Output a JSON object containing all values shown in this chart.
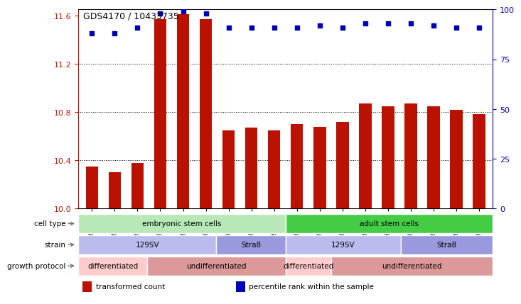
{
  "title": "GDS4170 / 10433735",
  "samples": [
    "GSM560810",
    "GSM560811",
    "GSM560812",
    "GSM560816",
    "GSM560817",
    "GSM560818",
    "GSM560813",
    "GSM560814",
    "GSM560815",
    "GSM560819",
    "GSM560820",
    "GSM560821",
    "GSM560822",
    "GSM560823",
    "GSM560824",
    "GSM560825",
    "GSM560826",
    "GSM560827"
  ],
  "bar_values": [
    10.35,
    10.3,
    10.38,
    11.57,
    11.61,
    11.57,
    10.65,
    10.67,
    10.65,
    10.7,
    10.68,
    10.72,
    10.87,
    10.85,
    10.87,
    10.85,
    10.82,
    10.78
  ],
  "percentile_values": [
    88,
    88,
    91,
    98,
    99,
    98,
    91,
    91,
    91,
    91,
    92,
    91,
    93,
    93,
    93,
    92,
    91,
    91
  ],
  "bar_color": "#bb1100",
  "percentile_color": "#0000bb",
  "ylim_left": [
    10.0,
    11.65
  ],
  "ylim_right": [
    0,
    100
  ],
  "yticks_left": [
    10.0,
    10.4,
    10.8,
    11.2,
    11.6
  ],
  "yticks_right": [
    0,
    25,
    50,
    75,
    100
  ],
  "cell_type_regions": [
    {
      "label": "embryonic stem cells",
      "start": 0,
      "end": 8,
      "color": "#b8e8b8"
    },
    {
      "label": "adult stem cells",
      "start": 9,
      "end": 17,
      "color": "#44cc44"
    }
  ],
  "strain_regions": [
    {
      "label": "129SV",
      "start": 0,
      "end": 5,
      "color": "#bbbbee"
    },
    {
      "label": "Stra8",
      "start": 6,
      "end": 8,
      "color": "#9999dd"
    },
    {
      "label": "129SV",
      "start": 9,
      "end": 13,
      "color": "#bbbbee"
    },
    {
      "label": "Stra8",
      "start": 14,
      "end": 17,
      "color": "#9999dd"
    }
  ],
  "protocol_regions": [
    {
      "label": "differentiated",
      "start": 0,
      "end": 2,
      "color": "#ffcccc"
    },
    {
      "label": "undifferentiated",
      "start": 3,
      "end": 8,
      "color": "#dd9999"
    },
    {
      "label": "differentiated",
      "start": 9,
      "end": 10,
      "color": "#ffcccc"
    },
    {
      "label": "undifferentiated",
      "start": 11,
      "end": 17,
      "color": "#dd9999"
    }
  ],
  "legend_items": [
    {
      "label": "transformed count",
      "color": "#bb1100"
    },
    {
      "label": "percentile rank within the sample",
      "color": "#0000bb"
    }
  ],
  "background_color": "#ffffff"
}
